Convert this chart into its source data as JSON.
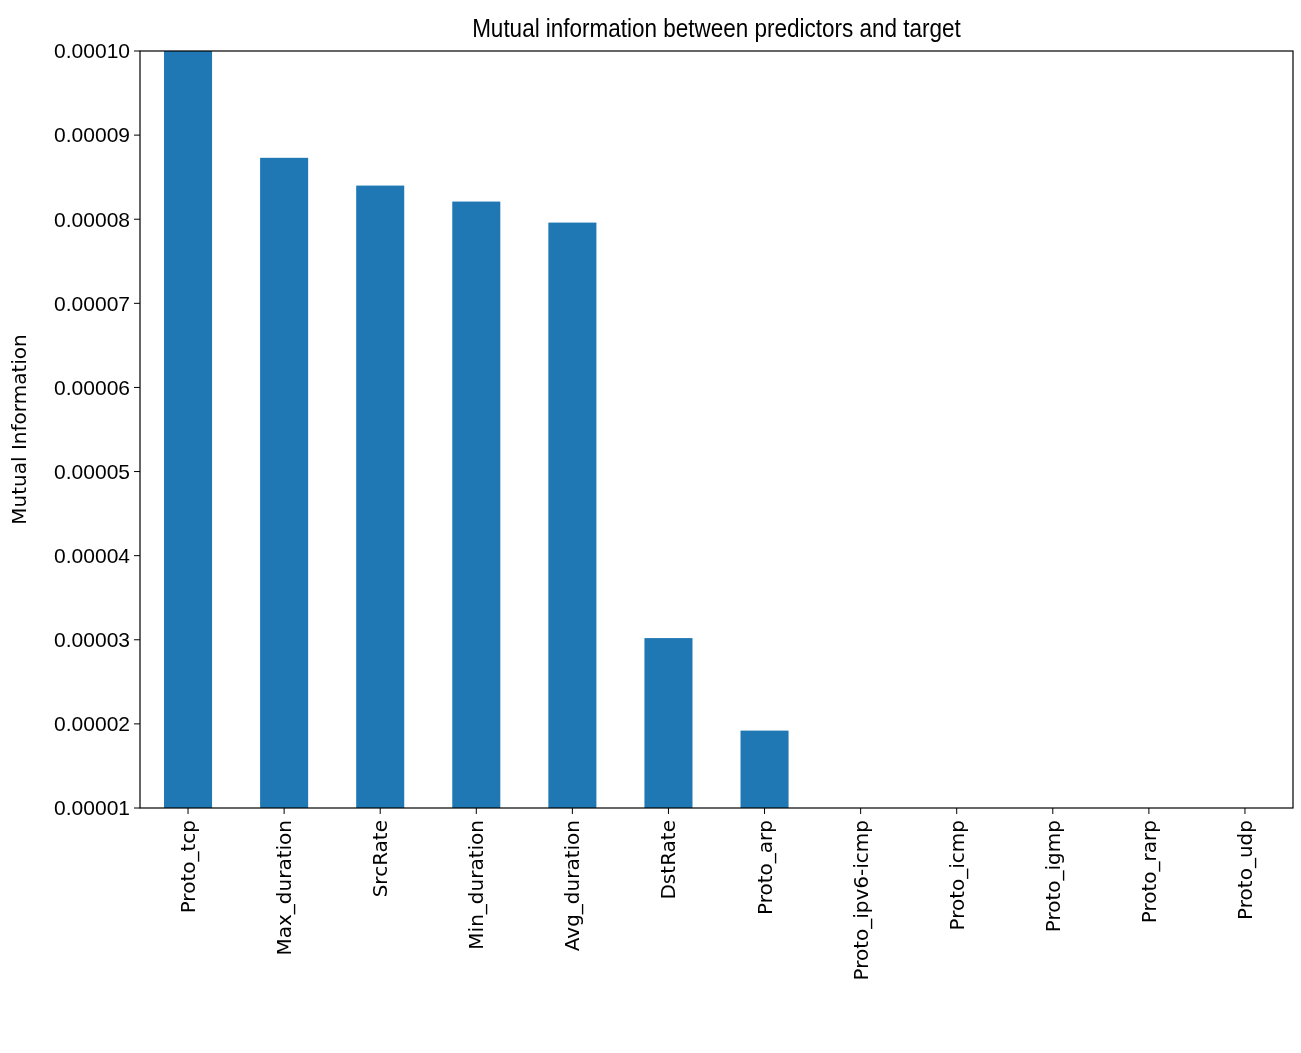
{
  "chart_data": {
    "type": "bar",
    "title": "Mutual information between predictors and target",
    "ylabel": "Mutual Information",
    "categories": [
      "Proto_tcp",
      "Max_duration",
      "SrcRate",
      "Min_duration",
      "Avg_duration",
      "DstRate",
      "Proto_arp",
      "Proto_ipv6-icmp",
      "Proto_icmp",
      "Proto_igmp",
      "Proto_rarp",
      "Proto_udp"
    ],
    "values": [
      0.0001,
      8.73e-05,
      8.4e-05,
      8.21e-05,
      7.96e-05,
      3.02e-05,
      1.92e-05,
      null,
      null,
      null,
      null,
      null
    ],
    "color": "#1f77b4",
    "ylim": [
      1e-05,
      0.0001
    ],
    "yticks": [
      {
        "value": 1e-05,
        "label": "0.00001"
      },
      {
        "value": 2e-05,
        "label": "0.00002"
      },
      {
        "value": 3e-05,
        "label": "0.00003"
      },
      {
        "value": 4e-05,
        "label": "0.00004"
      },
      {
        "value": 5e-05,
        "label": "0.00005"
      },
      {
        "value": 6e-05,
        "label": "0.00006"
      },
      {
        "value": 7e-05,
        "label": "0.00007"
      },
      {
        "value": 8e-05,
        "label": "0.00008"
      },
      {
        "value": 9e-05,
        "label": "0.00009"
      },
      {
        "value": 0.0001,
        "label": "0.00010"
      }
    ]
  }
}
